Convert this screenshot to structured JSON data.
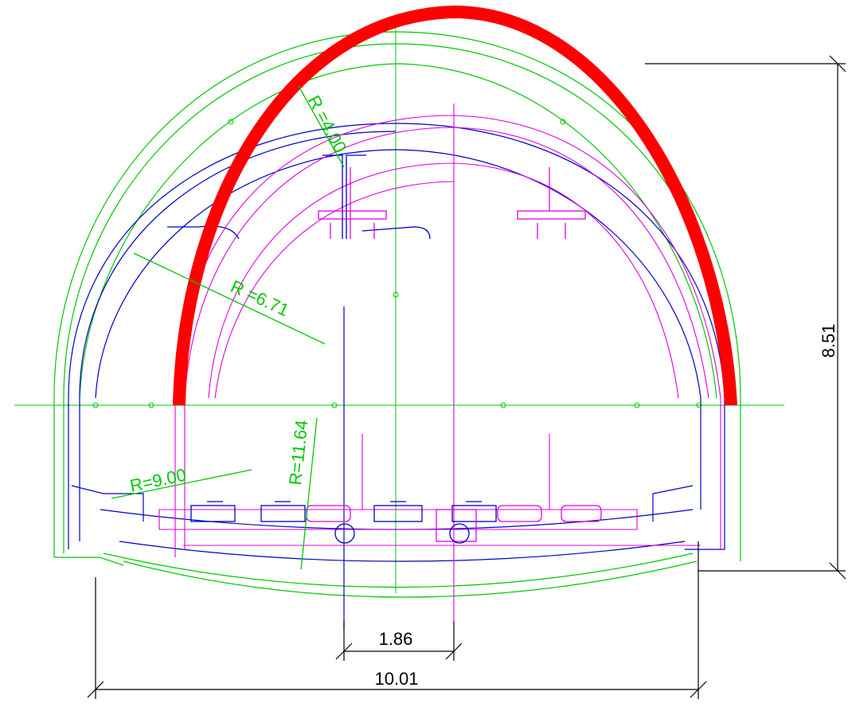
{
  "colors": {
    "background": "#ffffff",
    "lining": "#ff0000",
    "green": "#00c800",
    "blue": "#0000c8",
    "magenta": "#e000e0",
    "dimension": "#000000"
  },
  "dimensions": {
    "height": "8.51",
    "total_width": "10.01",
    "track_spacing": "1.86"
  },
  "radii": {
    "r1": "R =4.00",
    "r2": "R =6.71",
    "r3": "R=9.00",
    "r4": "R=11.64"
  },
  "icons": [
    "catenary-support-icon",
    "rail-fastening-icon",
    "drainage-channel-icon"
  ]
}
